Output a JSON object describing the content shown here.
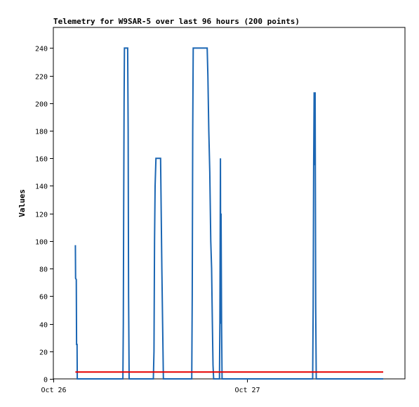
{
  "chart_data": {
    "type": "line",
    "title": "Telemetry for W9SAR-5 over last 96 hours (200 points)",
    "xlabel": "",
    "ylabel": "Values",
    "ylim": [
      0,
      255
    ],
    "yticks": [
      0,
      20,
      40,
      60,
      80,
      100,
      120,
      140,
      160,
      180,
      200,
      220,
      240
    ],
    "xticks": [
      {
        "label": "Oct 26",
        "t": 0
      },
      {
        "label": "Oct 27",
        "t": 24
      }
    ],
    "xlim": [
      0,
      43.6
    ],
    "grid": false,
    "legend": "none",
    "series": [
      {
        "color": "#1b66b3",
        "points": [
          [
            2.73,
            97
          ],
          [
            2.76,
            73
          ],
          [
            2.85,
            72
          ],
          [
            2.88,
            25
          ],
          [
            2.94,
            25
          ],
          [
            2.97,
            0
          ],
          [
            8.62,
            0
          ],
          [
            8.68,
            40
          ],
          [
            8.72,
            120
          ],
          [
            8.77,
            200
          ],
          [
            8.82,
            240
          ],
          [
            9.22,
            240
          ],
          [
            9.28,
            180
          ],
          [
            9.33,
            60
          ],
          [
            9.4,
            0
          ],
          [
            12.4,
            0
          ],
          [
            12.48,
            20
          ],
          [
            12.55,
            100
          ],
          [
            12.62,
            140
          ],
          [
            12.72,
            160
          ],
          [
            13.3,
            160
          ],
          [
            13.38,
            120
          ],
          [
            13.45,
            80
          ],
          [
            13.55,
            40
          ],
          [
            13.65,
            0
          ],
          [
            17.16,
            0
          ],
          [
            17.22,
            60
          ],
          [
            17.28,
            180
          ],
          [
            17.34,
            240
          ],
          [
            19.08,
            240
          ],
          [
            19.16,
            220
          ],
          [
            19.28,
            180
          ],
          [
            19.4,
            150
          ],
          [
            19.52,
            100
          ],
          [
            19.62,
            80
          ],
          [
            19.72,
            40
          ],
          [
            19.8,
            10
          ],
          [
            19.88,
            0
          ],
          [
            20.6,
            0
          ],
          [
            20.65,
            40
          ],
          [
            20.72,
            160
          ],
          [
            20.76,
            40
          ],
          [
            20.8,
            120
          ],
          [
            20.86,
            40
          ],
          [
            20.92,
            0
          ],
          [
            32.16,
            0
          ],
          [
            32.22,
            52
          ],
          [
            32.28,
            155
          ],
          [
            32.34,
            208
          ],
          [
            32.4,
            155
          ],
          [
            32.46,
            208
          ],
          [
            32.53,
            52
          ],
          [
            32.6,
            0
          ],
          [
            40.9,
            0
          ]
        ]
      },
      {
        "color": "#e60000",
        "points": [
          [
            2.73,
            5
          ],
          [
            40.9,
            5
          ]
        ]
      }
    ]
  }
}
